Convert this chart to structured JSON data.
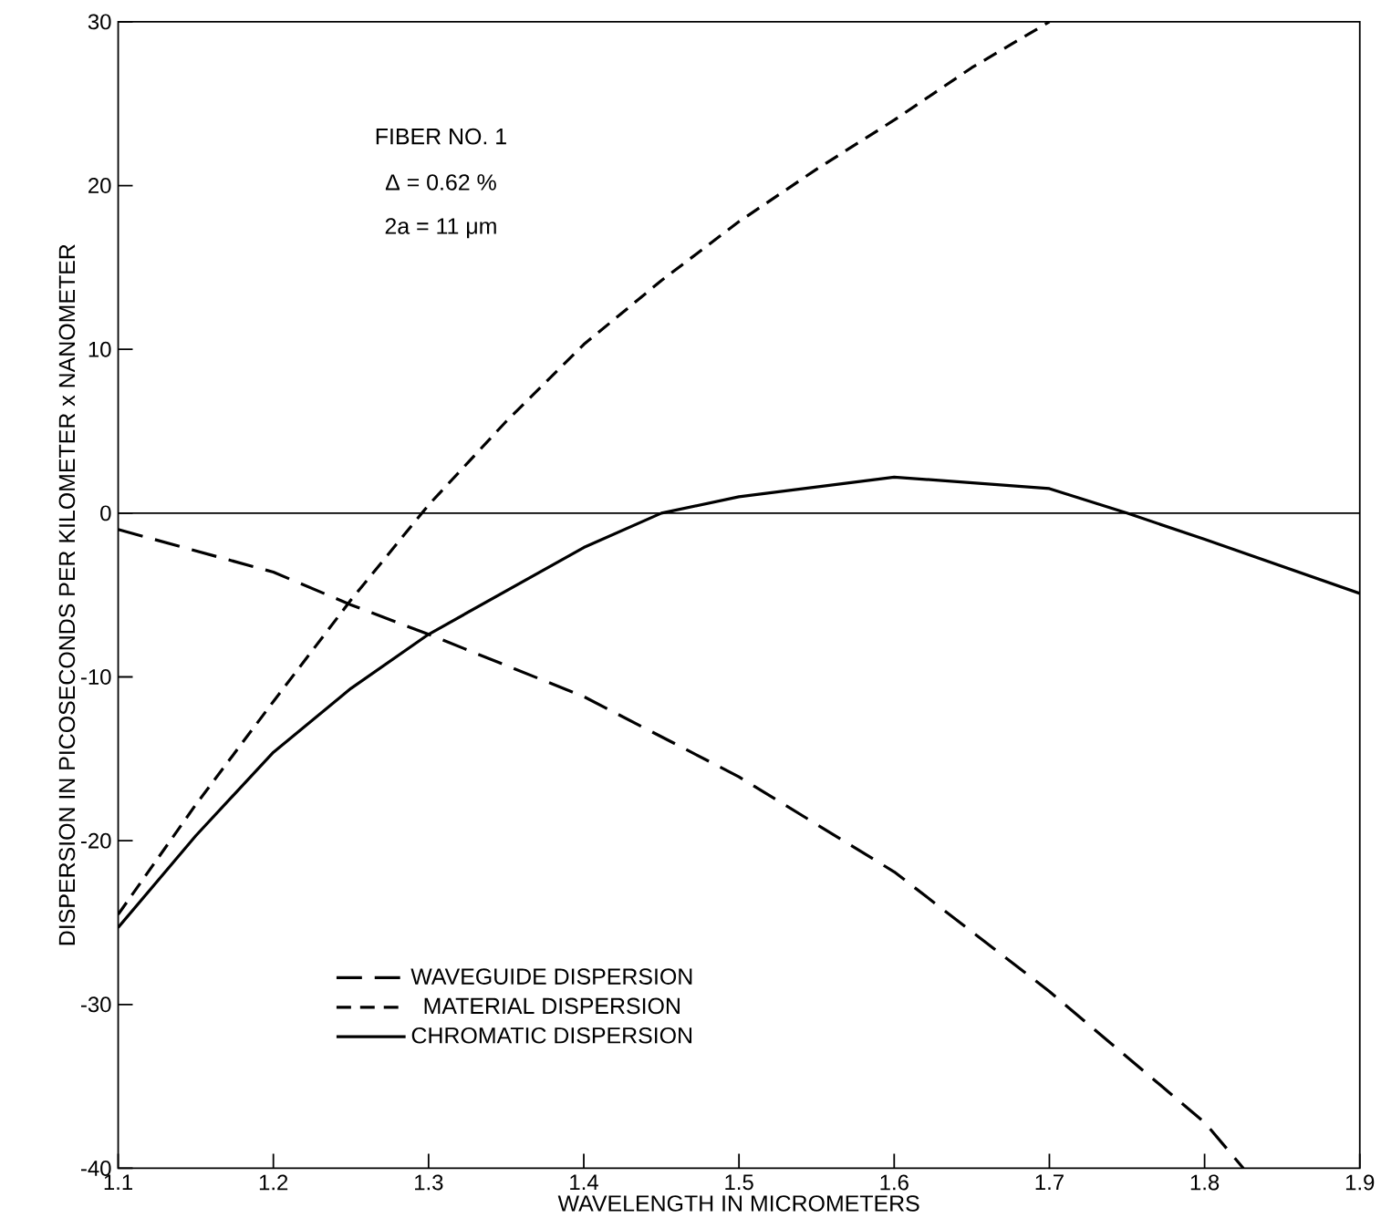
{
  "chart_data": {
    "type": "line",
    "xlabel": "WAVELENGTH IN MICROMETERS",
    "ylabel": "DISPERSION IN PICOSECONDS PER KILOMETER x NANOMETER",
    "xlim": [
      1.1,
      1.9
    ],
    "ylim": [
      -40,
      30
    ],
    "xticks": [
      1.1,
      1.2,
      1.3,
      1.4,
      1.5,
      1.6,
      1.7,
      1.8,
      1.9
    ],
    "yticks": [
      -40,
      -30,
      -20,
      -10,
      0,
      10,
      20,
      30
    ],
    "grid": false,
    "legend": "bottom left",
    "marker": "none",
    "annotations": [
      "FIBER NO. 1",
      "Δ = 0.62 %",
      "2a = 11 μm"
    ],
    "ref_lines": [
      {
        "axis": "y",
        "value": 0,
        "color": "#000000",
        "line_style": "solid"
      }
    ],
    "series": [
      {
        "name": "WAVEGUIDE DISPERSION",
        "color": "#000000",
        "line_style": "dashed",
        "x": [
          1.1,
          1.2,
          1.25,
          1.3,
          1.4,
          1.5,
          1.6,
          1.7,
          1.8,
          1.825
        ],
        "values": [
          -1.0,
          -3.6,
          -5.6,
          -7.4,
          -11.2,
          -16.1,
          -21.9,
          -29.2,
          -37.2,
          -40
        ]
      },
      {
        "name": "MATERIAL DISPERSION",
        "color": "#000000",
        "line_style": "dashed",
        "x": [
          1.1,
          1.15,
          1.2,
          1.25,
          1.3,
          1.35,
          1.4,
          1.45,
          1.5,
          1.55,
          1.6,
          1.65,
          1.7
        ],
        "values": [
          -24.5,
          -17.8,
          -11.5,
          -5.3,
          0.5,
          5.6,
          10.3,
          14.2,
          17.8,
          21,
          24,
          27.2,
          30
        ]
      },
      {
        "name": "CHROMATIC DISPERSION",
        "color": "#000000",
        "line_style": "solid",
        "x": [
          1.1,
          1.15,
          1.2,
          1.25,
          1.3,
          1.4,
          1.45,
          1.5,
          1.6,
          1.7,
          1.75,
          1.8,
          1.9
        ],
        "values": [
          -25.3,
          -19.7,
          -14.6,
          -10.7,
          -7.4,
          -2.1,
          0,
          1.0,
          2.2,
          1.5,
          0,
          -1.6,
          -4.9
        ]
      }
    ]
  }
}
